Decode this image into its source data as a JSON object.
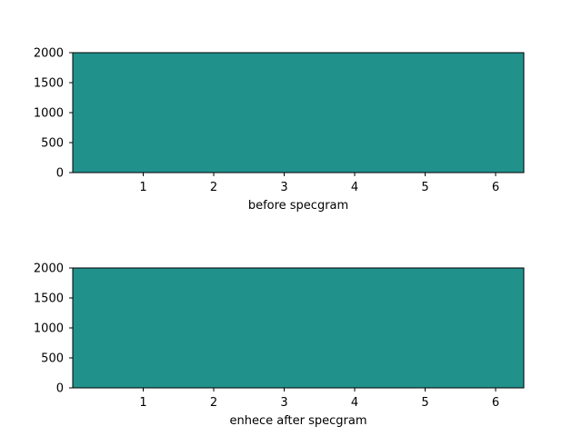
{
  "chart_data": [
    {
      "type": "heatmap",
      "title": "",
      "xlabel": "before specgram",
      "ylabel": "",
      "xlim": [
        0,
        6.4
      ],
      "ylim": [
        0,
        2000
      ],
      "x_ticks": [
        1,
        2,
        3,
        4,
        5,
        6
      ],
      "y_ticks": [
        0,
        500,
        1000,
        1500,
        2000
      ],
      "fill_color": "#21918c",
      "grid": false
    },
    {
      "type": "heatmap",
      "title": "",
      "xlabel": "enhece after specgram",
      "ylabel": "",
      "xlim": [
        0,
        6.4
      ],
      "ylim": [
        0,
        2000
      ],
      "x_ticks": [
        1,
        2,
        3,
        4,
        5,
        6
      ],
      "y_ticks": [
        0,
        500,
        1000,
        1500,
        2000
      ],
      "fill_color": "#21918c",
      "grid": false
    }
  ]
}
